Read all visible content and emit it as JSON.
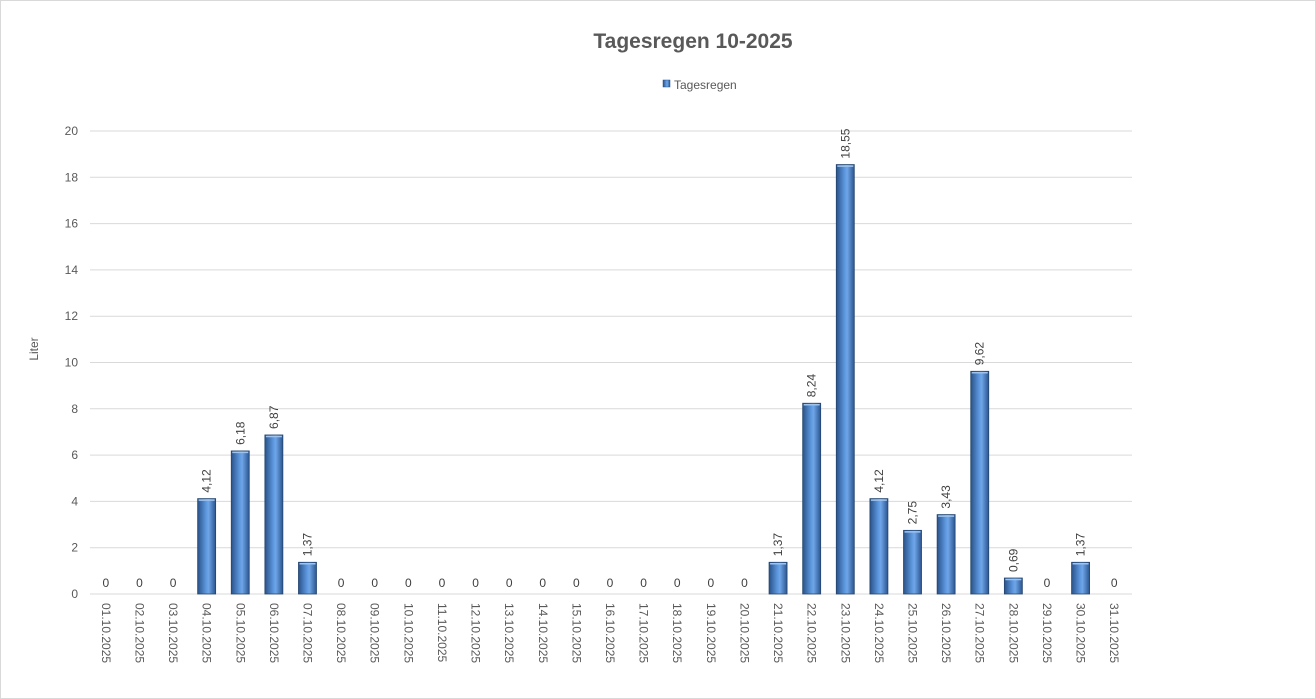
{
  "chart_data": {
    "type": "bar",
    "title": "Tagesregen 10-2025",
    "ylabel": "Liter",
    "xlabel": "",
    "legend": {
      "position": "top",
      "entries": [
        "Tagesregen"
      ]
    },
    "grid": true,
    "ylim": [
      0,
      20
    ],
    "yticks": [
      0,
      2,
      4,
      6,
      8,
      10,
      12,
      14,
      16,
      18,
      20
    ],
    "colors": {
      "bar": "#4a7ebb",
      "bar_dark": "#24466f",
      "bar_light": "#9ec3ef",
      "grid": "#d9d9d9",
      "text": "#595959"
    },
    "categories": [
      "01.10.2025",
      "02.10.2025",
      "03.10.2025",
      "04.10.2025",
      "05.10.2025",
      "06.10.2025",
      "07.10.2025",
      "08.10.2025",
      "09.10.2025",
      "10.10.2025",
      "11.10.2025",
      "12.10.2025",
      "13.10.2025",
      "14.10.2025",
      "15.10.2025",
      "16.10.2025",
      "17.10.2025",
      "18.10.2025",
      "19.10.2025",
      "20.10.2025",
      "21.10.2025",
      "22.10.2025",
      "23.10.2025",
      "24.10.2025",
      "25.10.2025",
      "26.10.2025",
      "27.10.2025",
      "28.10.2025",
      "29.10.2025",
      "30.10.2025",
      "31.10.2025"
    ],
    "series": [
      {
        "name": "Tagesregen",
        "values": [
          0,
          0,
          0,
          4.12,
          6.18,
          6.87,
          1.37,
          0,
          0,
          0,
          0,
          0,
          0,
          0,
          0,
          0,
          0,
          0,
          0,
          0,
          1.37,
          8.24,
          18.55,
          4.12,
          2.75,
          3.43,
          9.62,
          0.69,
          0,
          1.37,
          0
        ],
        "labels": [
          "0",
          "0",
          "0",
          "4,12",
          "6,18",
          "6,87",
          "1,37",
          "0",
          "0",
          "0",
          "0",
          "0",
          "0",
          "0",
          "0",
          "0",
          "0",
          "0",
          "0",
          "0",
          "1,37",
          "8,24",
          "18,55",
          "4,12",
          "2,75",
          "3,43",
          "9,62",
          "0,69",
          "0",
          "1,37",
          "0"
        ]
      }
    ]
  }
}
